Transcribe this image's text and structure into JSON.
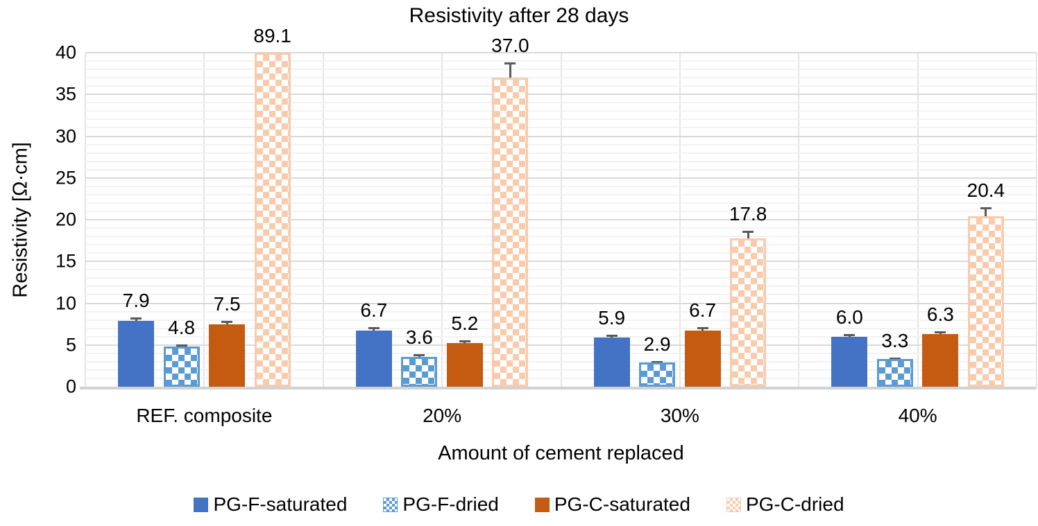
{
  "figure_title": "Resistivity after 28 days",
  "chart_data": {
    "type": "bar",
    "title": "Resistivity after 28 days",
    "xlabel": "Amount of cement replaced",
    "ylabel": "Resistivity [Ω·cm]",
    "ylim": [
      0,
      40
    ],
    "y_major_step": 5,
    "y_minor_step": 1,
    "y_ticks": [
      "0",
      "5",
      "10",
      "15",
      "20",
      "25",
      "30",
      "35",
      "40"
    ],
    "grid": "major-and-minor-horizontal-plus-vertical-category-lines",
    "legend_position": "bottom",
    "categories": [
      "REF. composite",
      "20%",
      "30%",
      "40%"
    ],
    "series": [
      {
        "name": "PG-F-saturated",
        "style": "solid",
        "color": "#4472C4",
        "values": [
          7.9,
          6.7,
          5.9,
          6.0
        ],
        "labels": [
          "7.9",
          "6.7",
          "5.9",
          "6.0"
        ],
        "errors": [
          0.4,
          0.4,
          0.3,
          0.3
        ]
      },
      {
        "name": "PG-F-dried",
        "style": "checker",
        "color": "#5B9BD5",
        "values": [
          4.8,
          3.6,
          2.9,
          3.3
        ],
        "labels": [
          "4.8",
          "3.6",
          "2.9",
          "3.3"
        ],
        "errors": [
          0.25,
          0.3,
          0.15,
          0.15
        ]
      },
      {
        "name": "PG-C-saturated",
        "style": "solid",
        "color": "#C55A11",
        "values": [
          7.5,
          5.2,
          6.7,
          6.3
        ],
        "labels": [
          "7.5",
          "5.2",
          "6.7",
          "6.3"
        ],
        "errors": [
          0.35,
          0.4,
          0.4,
          0.35
        ]
      },
      {
        "name": "PG-C-dried",
        "style": "checker",
        "color": "#F8CBAD",
        "values": [
          89.1,
          37.0,
          17.8,
          20.4
        ],
        "labels": [
          "89.1",
          "37.0",
          "17.8",
          "20.4"
        ],
        "errors": [
          null,
          1.8,
          0.9,
          1.1
        ]
      }
    ],
    "colors": {
      "grid_major": "#d9d9d9",
      "grid_minor": "#f2f2f2",
      "grid_vertical": "#e4e4e4",
      "axis_line": "#d2d2d2",
      "error_bar": "#595959",
      "text": "#000000",
      "background": "#ffffff"
    }
  }
}
